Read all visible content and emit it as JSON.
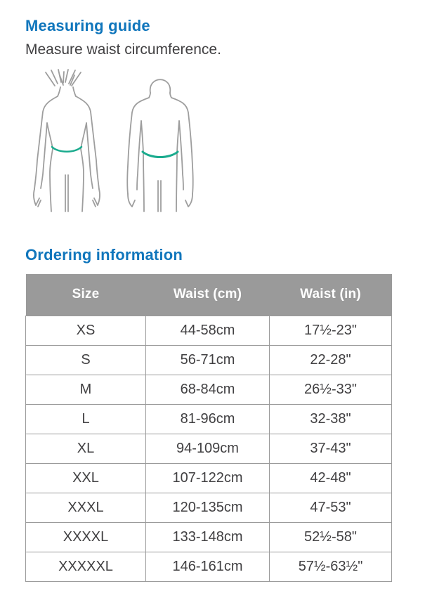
{
  "measuring": {
    "title": "Measuring guide",
    "subtitle": "Measure waist circumference."
  },
  "illustration": {
    "name": "female-and-male-back-view-with-waist-measurement-line",
    "outline_color": "#9e9e9e",
    "waist_line_color": "#1aab8e"
  },
  "ordering": {
    "title": "Ordering information"
  },
  "colors": {
    "accent_blue": "#1076bc",
    "table_header_gray": "#9a9a9a",
    "table_border_gray": "#9b9b9b",
    "body_text": "#414042"
  },
  "table": {
    "headers": [
      "Size",
      "Waist (cm)",
      "Waist (in)"
    ],
    "rows": [
      [
        "XS",
        "44-58cm",
        "17½-23\""
      ],
      [
        "S",
        "56-71cm",
        "22-28\""
      ],
      [
        "M",
        "68-84cm",
        "26½-33\""
      ],
      [
        "L",
        "81-96cm",
        "32-38\""
      ],
      [
        "XL",
        "94-109cm",
        "37-43\""
      ],
      [
        "XXL",
        "107-122cm",
        "42-48\""
      ],
      [
        "XXXL",
        "120-135cm",
        "47-53\""
      ],
      [
        "XXXXL",
        "133-148cm",
        "52½-58\""
      ],
      [
        "XXXXXL",
        "146-161cm",
        "57½-63½\""
      ]
    ]
  }
}
